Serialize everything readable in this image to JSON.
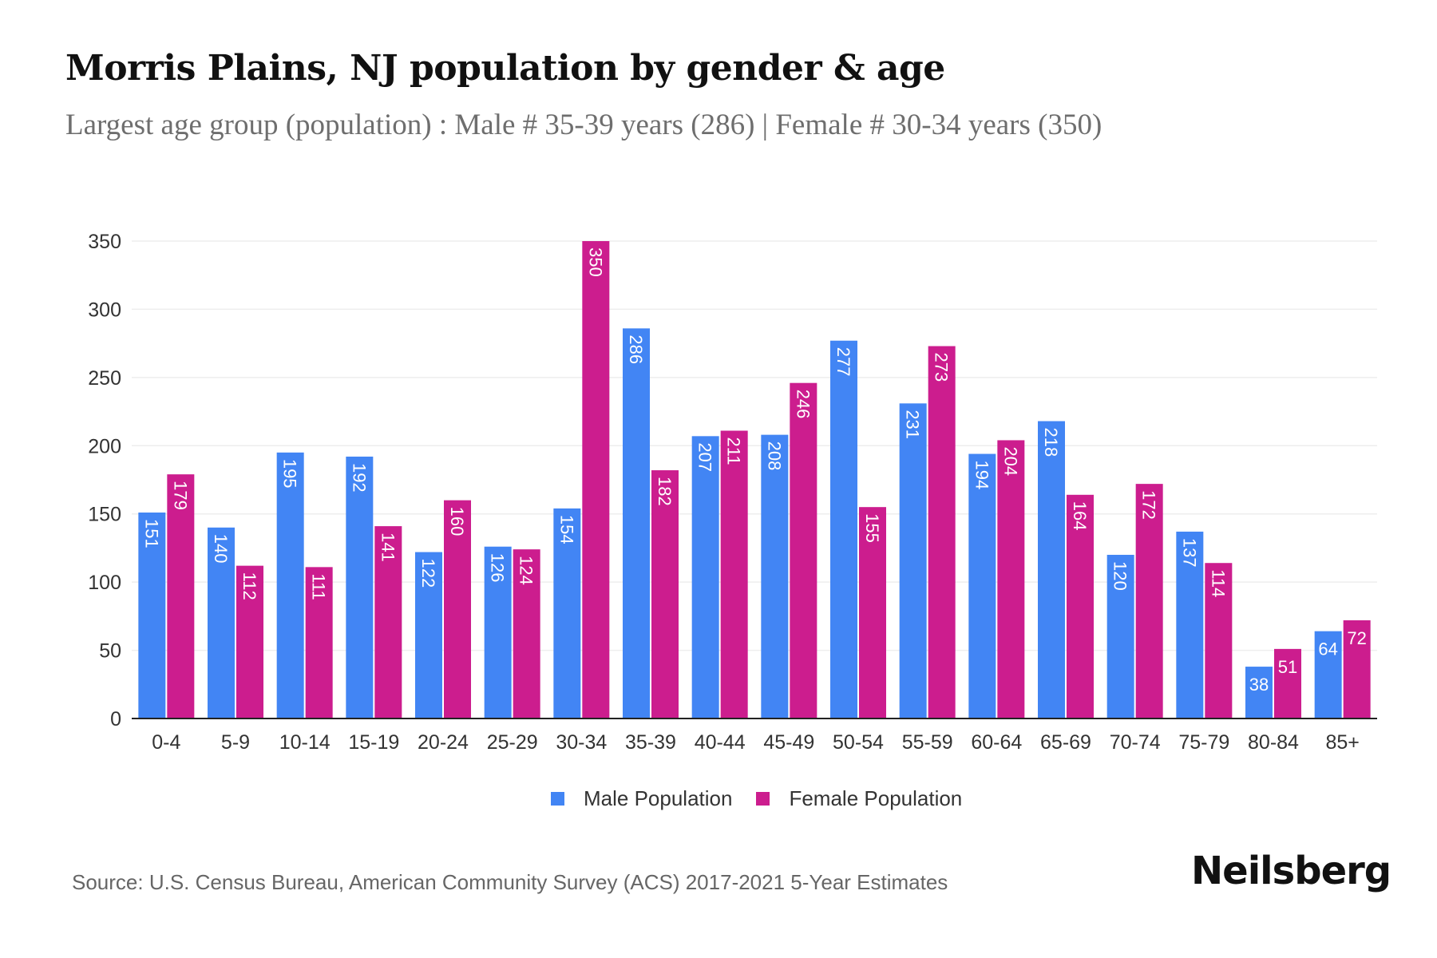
{
  "header": {
    "title": "Morris Plains, NJ population by gender & age",
    "subtitle": "Largest age group (population) : Male # 35-39 years (286) | Female # 30-34 years (350)"
  },
  "legend": {
    "male_label": "Male Population",
    "female_label": "Female Population"
  },
  "colors": {
    "male": "#4285F4",
    "female": "#CC1D8E",
    "axis": "#222222",
    "grid": "#eeeeee"
  },
  "footer": {
    "source": "Source: U.S. Census Bureau, American Community Survey (ACS) 2017-2021 5-Year Estimates",
    "brand": "Neilsberg"
  },
  "chart_data": {
    "type": "bar",
    "title": "Morris Plains, NJ population by gender & age",
    "subtitle": "Largest age group (population) : Male # 35-39 years (286) | Female # 30-34 years (350)",
    "xlabel": "",
    "ylabel": "",
    "ylim": [
      0,
      350
    ],
    "yticks": [
      0,
      50,
      100,
      150,
      200,
      250,
      300,
      350
    ],
    "grid": true,
    "legend_position": "bottom-center",
    "categories": [
      "0-4",
      "5-9",
      "10-14",
      "15-19",
      "20-24",
      "25-29",
      "30-34",
      "35-39",
      "40-44",
      "45-49",
      "50-54",
      "55-59",
      "60-64",
      "65-69",
      "70-74",
      "75-79",
      "80-84",
      "85+"
    ],
    "series": [
      {
        "name": "Male Population",
        "color": "#4285F4",
        "values": [
          151,
          140,
          195,
          192,
          122,
          126,
          154,
          286,
          207,
          208,
          277,
          231,
          194,
          218,
          120,
          137,
          38,
          64
        ]
      },
      {
        "name": "Female Population",
        "color": "#CC1D8E",
        "values": [
          179,
          112,
          111,
          141,
          160,
          124,
          350,
          182,
          211,
          246,
          155,
          273,
          204,
          164,
          172,
          114,
          51,
          72
        ]
      }
    ]
  }
}
